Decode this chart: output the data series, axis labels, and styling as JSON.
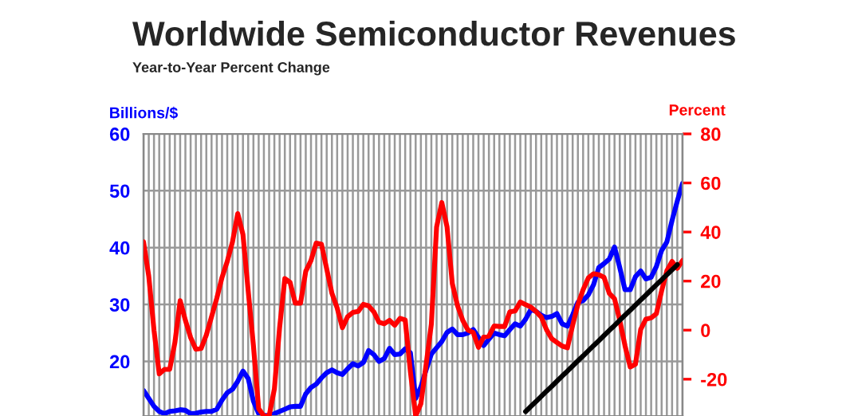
{
  "chart_data": {
    "type": "line",
    "title": "Worldwide Semiconductor Revenues",
    "subtitle": "Year-to-Year Percent Change",
    "ylabel": "Billions/$",
    "y2label": "Percent",
    "categories": [
      null,
      null,
      null,
      null,
      null,
      null,
      null,
      null,
      null,
      null,
      null,
      null,
      null,
      null,
      null,
      null,
      null,
      null,
      null,
      null,
      null,
      null,
      null,
      null,
      null,
      null,
      null,
      null,
      null,
      null,
      null,
      null,
      null,
      null,
      null,
      null,
      null,
      null,
      null,
      null,
      null,
      null,
      null,
      null,
      null,
      null,
      null,
      null,
      null,
      null,
      null,
      null,
      null,
      null,
      null,
      null,
      null,
      null,
      null,
      null,
      null,
      null,
      null,
      null,
      null,
      null,
      null,
      null,
      null,
      null,
      null,
      null,
      null,
      null,
      null,
      null,
      null,
      null,
      null,
      null,
      null,
      null,
      null,
      null,
      null,
      null,
      null,
      null,
      null,
      null,
      null,
      null,
      null,
      null,
      null,
      null,
      null,
      null,
      null,
      null,
      null,
      null,
      null,
      null
    ],
    "ylim": [
      10.4,
      60
    ],
    "yticks": [
      20,
      30,
      40,
      50,
      60
    ],
    "y2lim": [
      -35,
      80
    ],
    "y2ticks": [
      -20,
      0,
      20,
      40,
      60,
      80
    ],
    "grid": true,
    "series": [
      {
        "color": "#0000ff",
        "values": [
          14.9,
          13.5,
          12.1,
          11.2,
          10.8,
          11.2,
          11.3,
          11.5,
          11.4,
          10.8,
          10.9,
          11.1,
          11.2,
          11.2,
          11.6,
          13.2,
          14.5,
          15.1,
          16.5,
          18.3,
          17,
          13,
          10.8,
          10.5,
          10.5,
          10.8,
          11.2,
          11.6,
          12,
          12.1,
          12.1,
          14.3,
          15.4,
          16,
          17.1,
          18,
          18.5,
          18,
          17.7,
          18.7,
          19.6,
          19.2,
          19.8,
          21.9,
          21.2,
          20,
          20.5,
          22.3,
          21.2,
          21.3,
          22.2,
          21.5,
          13.5,
          15.5,
          18.5,
          21.3,
          22.4,
          23.5,
          25.1,
          25.7,
          24.7,
          24.7,
          25,
          25.6,
          24.2,
          22.8,
          23.9,
          25,
          24.7,
          24.5,
          25.6,
          26.6,
          26.2,
          27.4,
          29.1,
          28.8,
          28.1,
          27.7,
          27.9,
          28.4,
          26.6,
          26.2,
          28.2,
          30.4,
          30.7,
          31.7,
          33.5,
          36.5,
          37.2,
          38,
          40.1,
          36.5,
          32.6,
          32.6,
          34.9,
          35.9,
          34.5,
          34.8,
          36.7,
          39.5,
          41,
          44.8,
          48.2,
          51.3
        ]
      },
      {
        "color": "#ff0000",
        "axis": "y2",
        "values": [
          36,
          22,
          0,
          -17.8,
          -16,
          -16,
          -5,
          12,
          4,
          -3,
          -7.8,
          -7.5,
          -2,
          5.5,
          13,
          21.5,
          28,
          36,
          47.5,
          39,
          16,
          -6.3,
          -32,
          -35,
          -35,
          -24,
          1,
          21,
          19.5,
          11,
          11,
          24,
          28.4,
          35.5,
          35,
          25,
          15,
          9,
          1,
          5.5,
          7.2,
          7.6,
          10.5,
          9.9,
          7.5,
          3.2,
          2.6,
          4,
          2,
          4.8,
          4.2,
          -17,
          -35,
          -30,
          -14,
          2.5,
          42,
          52,
          42,
          19,
          10,
          4,
          0,
          -1,
          -7,
          -2.8,
          -2.4,
          1.7,
          1.5,
          1.5,
          7.5,
          7.8,
          11.5,
          10.4,
          9.4,
          7.6,
          5.3,
          0.2,
          -3.5,
          -5,
          -6.5,
          -7.2,
          2,
          10.5,
          16.5,
          21.3,
          23,
          22.6,
          21.5,
          15,
          12.8,
          4,
          -6.3,
          -15,
          -13.9,
          0.3,
          4.5,
          5,
          6.7,
          16,
          24.2,
          28,
          25.2,
          28.4
        ]
      },
      {
        "type": "line",
        "color": "#000000",
        "axis": "y2",
        "values": [
          null,
          null,
          null,
          null,
          null,
          null,
          null,
          null,
          null,
          null,
          null,
          null,
          null,
          null,
          null,
          null,
          null,
          null,
          null,
          null,
          null,
          null,
          null,
          null,
          null,
          null,
          null,
          null,
          null,
          null,
          null,
          null,
          null,
          null,
          null,
          null,
          null,
          null,
          null,
          null,
          null,
          null,
          null,
          null,
          null,
          null,
          null,
          null,
          null,
          null,
          null,
          null,
          null,
          null,
          null,
          null,
          null,
          null,
          null,
          null,
          null,
          null,
          null,
          null,
          null,
          null,
          null,
          null,
          null,
          null,
          null,
          null,
          null,
          -33.2,
          -31.1,
          -29.1,
          -27.0,
          -24.9,
          -22.9,
          -20.8,
          -18.7,
          -16.7,
          -14.6,
          -12.5,
          -10.5,
          -8.4,
          -6.3,
          -4.3,
          -2.2,
          -0.1,
          1.9,
          4.0,
          6.1,
          8.1,
          10.2,
          12.3,
          14.3,
          16.4,
          18.5,
          20.5,
          22.6,
          24.6,
          26.7,
          null
        ]
      }
    ]
  }
}
